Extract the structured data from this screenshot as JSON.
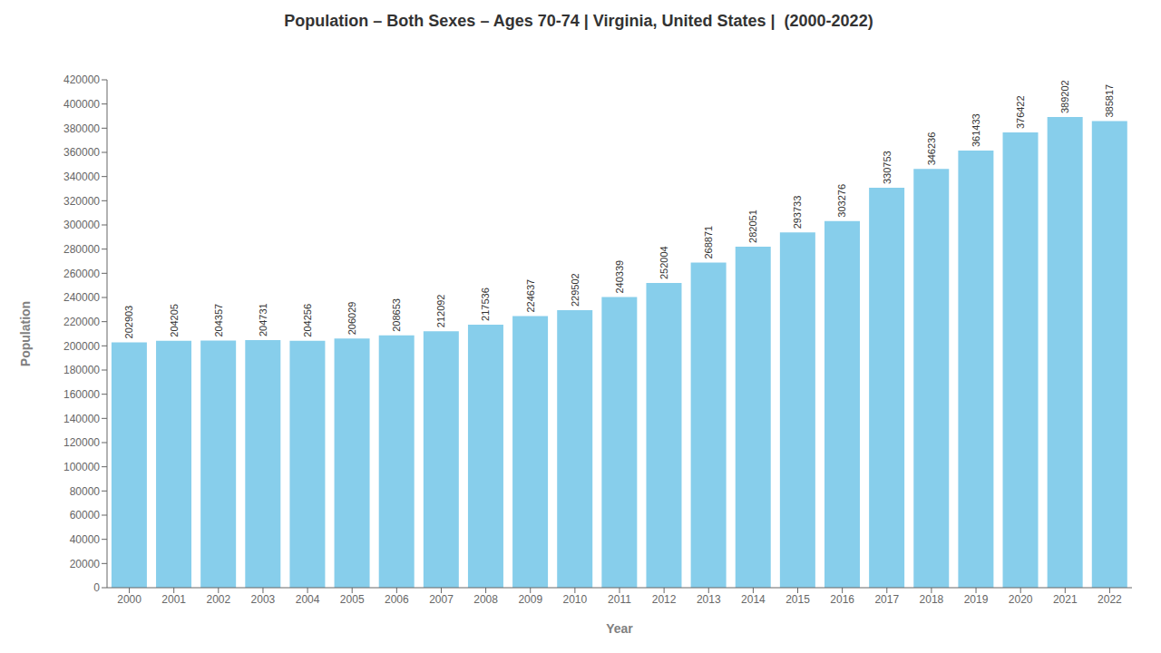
{
  "chart_data": {
    "type": "bar",
    "title": "Population – Both Sexes – Ages 70-74 | Virginia, United States |  (2000-2022)",
    "x_label": "Year",
    "y_label": "Population",
    "categories": [
      "2000",
      "2001",
      "2002",
      "2003",
      "2004",
      "2005",
      "2006",
      "2007",
      "2008",
      "2009",
      "2010",
      "2011",
      "2012",
      "2013",
      "2014",
      "2015",
      "2016",
      "2017",
      "2018",
      "2019",
      "2020",
      "2021",
      "2022"
    ],
    "values": [
      202903,
      204205,
      204357,
      204731,
      204256,
      206029,
      208653,
      212092,
      217536,
      224637,
      229502,
      240339,
      252004,
      268871,
      282051,
      293733,
      303276,
      330753,
      346236,
      361433,
      376422,
      389202,
      385817
    ],
    "color": "#87CEEB",
    "ylim": [
      0,
      420000
    ],
    "yticks": [
      0,
      20000,
      40000,
      60000,
      80000,
      100000,
      120000,
      140000,
      160000,
      180000,
      200000,
      220000,
      240000,
      260000,
      280000,
      300000,
      320000,
      340000,
      360000,
      380000,
      400000,
      420000
    ],
    "grid": false,
    "data_labels": true
  }
}
